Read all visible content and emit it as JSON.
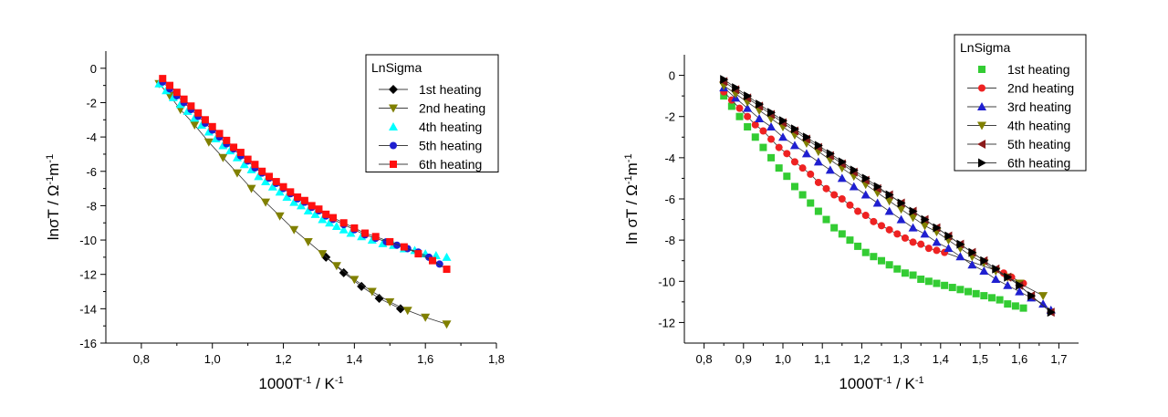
{
  "chart_data": [
    {
      "type": "line",
      "xlabel": "1000T⁻¹ / K⁻¹",
      "ylabel": "lnσT / Ω⁻¹m⁻¹",
      "xlim": [
        0.7,
        1.8
      ],
      "ylim": [
        -16,
        1
      ],
      "xticks": [
        "0,8",
        "1,0",
        "1,2",
        "1,4",
        "1,6",
        "1,8"
      ],
      "xtick_values": [
        0.8,
        1.0,
        1.2,
        1.4,
        1.6,
        1.8
      ],
      "yticks": [
        "0",
        "-2",
        "-4",
        "-6",
        "-8",
        "-10",
        "-12",
        "-14",
        "-16"
      ],
      "ytick_values": [
        0,
        -2,
        -4,
        -6,
        -8,
        -10,
        -12,
        -14,
        -16
      ],
      "legend_title": "LnSigma",
      "legend_position": "top-right",
      "series": [
        {
          "name": "1st heating",
          "marker": "diamond",
          "color": "#000000",
          "line": true,
          "x": [
            1.32,
            1.37,
            1.42,
            1.47,
            1.53
          ],
          "y": [
            -11.0,
            -11.9,
            -12.7,
            -13.4,
            -14.0
          ]
        },
        {
          "name": "2nd heating",
          "marker": "triangle-down",
          "color": "#808000",
          "line": true,
          "x": [
            0.85,
            0.88,
            0.91,
            0.95,
            0.99,
            1.03,
            1.07,
            1.11,
            1.15,
            1.19,
            1.23,
            1.27,
            1.31,
            1.35,
            1.4,
            1.45,
            1.5,
            1.55,
            1.6,
            1.66
          ],
          "y": [
            -0.9,
            -1.6,
            -2.4,
            -3.3,
            -4.3,
            -5.2,
            -6.1,
            -7.0,
            -7.8,
            -8.6,
            -9.4,
            -10.1,
            -10.8,
            -11.5,
            -12.3,
            -13.0,
            -13.6,
            -14.1,
            -14.5,
            -14.9
          ]
        },
        {
          "name": "4th heating",
          "marker": "triangle-up",
          "color": "#00ffff",
          "line": false,
          "x": [
            0.85,
            0.87,
            0.89,
            0.91,
            0.93,
            0.95,
            0.97,
            0.99,
            1.01,
            1.03,
            1.05,
            1.07,
            1.09,
            1.11,
            1.13,
            1.15,
            1.17,
            1.19,
            1.21,
            1.23,
            1.25,
            1.27,
            1.29,
            1.31,
            1.33,
            1.35,
            1.37,
            1.39,
            1.42,
            1.45,
            1.48,
            1.51,
            1.54,
            1.57,
            1.6,
            1.63,
            1.66
          ],
          "y": [
            -0.9,
            -1.3,
            -1.7,
            -2.1,
            -2.5,
            -2.9,
            -3.3,
            -3.7,
            -4.1,
            -4.5,
            -4.8,
            -5.2,
            -5.6,
            -5.9,
            -6.3,
            -6.6,
            -6.9,
            -7.2,
            -7.5,
            -7.8,
            -8.0,
            -8.3,
            -8.5,
            -8.8,
            -9.0,
            -9.2,
            -9.4,
            -9.6,
            -9.8,
            -10.0,
            -10.2,
            -10.3,
            -10.5,
            -10.6,
            -10.8,
            -10.9,
            -11.0
          ]
        },
        {
          "name": "5th heating",
          "marker": "circle",
          "color": "#1f1fd0",
          "line": true,
          "x": [
            0.86,
            0.88,
            0.9,
            0.92,
            0.94,
            0.96,
            0.98,
            1.0,
            1.02,
            1.04,
            1.06,
            1.08,
            1.1,
            1.12,
            1.14,
            1.16,
            1.18,
            1.2,
            1.22,
            1.24,
            1.26,
            1.28,
            1.3,
            1.32,
            1.34,
            1.37,
            1.4,
            1.43,
            1.46,
            1.49,
            1.52,
            1.55,
            1.58,
            1.61,
            1.64
          ],
          "y": [
            -0.8,
            -1.2,
            -1.6,
            -2.0,
            -2.4,
            -2.8,
            -3.2,
            -3.6,
            -4.0,
            -4.4,
            -4.7,
            -5.1,
            -5.4,
            -5.8,
            -6.1,
            -6.4,
            -6.7,
            -7.0,
            -7.3,
            -7.6,
            -7.8,
            -8.1,
            -8.3,
            -8.6,
            -8.8,
            -9.1,
            -9.4,
            -9.7,
            -9.9,
            -10.1,
            -10.3,
            -10.5,
            -10.7,
            -11.0,
            -11.4
          ]
        },
        {
          "name": "6th heating",
          "marker": "square",
          "color": "#ff1010",
          "line": true,
          "x": [
            0.86,
            0.88,
            0.9,
            0.92,
            0.94,
            0.96,
            0.98,
            1.0,
            1.02,
            1.04,
            1.06,
            1.08,
            1.1,
            1.12,
            1.14,
            1.16,
            1.18,
            1.2,
            1.22,
            1.24,
            1.26,
            1.28,
            1.3,
            1.32,
            1.34,
            1.37,
            1.4,
            1.43,
            1.46,
            1.5,
            1.54,
            1.58,
            1.62,
            1.66
          ],
          "y": [
            -0.6,
            -1.0,
            -1.4,
            -1.8,
            -2.2,
            -2.6,
            -3.0,
            -3.4,
            -3.8,
            -4.2,
            -4.6,
            -4.9,
            -5.3,
            -5.6,
            -6.0,
            -6.3,
            -6.6,
            -6.9,
            -7.2,
            -7.5,
            -7.7,
            -8.0,
            -8.2,
            -8.5,
            -8.7,
            -9.0,
            -9.3,
            -9.6,
            -9.8,
            -10.1,
            -10.4,
            -10.8,
            -11.2,
            -11.7
          ]
        }
      ]
    },
    {
      "type": "line",
      "xlabel": "1000T⁻¹ / K⁻¹",
      "ylabel": "ln σT / Ω⁻¹m⁻¹",
      "xlim": [
        0.75,
        1.75
      ],
      "ylim": [
        -13,
        1
      ],
      "xticks": [
        "0,8",
        "0,9",
        "1,0",
        "1,1",
        "1,2",
        "1,3",
        "1,4",
        "1,5",
        "1,6",
        "1,7"
      ],
      "xtick_values": [
        0.8,
        0.9,
        1.0,
        1.1,
        1.2,
        1.3,
        1.4,
        1.5,
        1.6,
        1.7
      ],
      "yticks": [
        "0",
        "-2",
        "-4",
        "-6",
        "-8",
        "-10",
        "-12"
      ],
      "ytick_values": [
        0,
        -2,
        -4,
        -6,
        -8,
        -10,
        -12
      ],
      "legend_title": "LnSigma",
      "legend_position": "top-right",
      "series": [
        {
          "name": "1st heating",
          "marker": "square",
          "color": "#33cc33",
          "line": false,
          "x": [
            0.85,
            0.87,
            0.89,
            0.91,
            0.93,
            0.95,
            0.97,
            0.99,
            1.01,
            1.03,
            1.05,
            1.07,
            1.09,
            1.11,
            1.13,
            1.15,
            1.17,
            1.19,
            1.21,
            1.23,
            1.25,
            1.27,
            1.29,
            1.31,
            1.33,
            1.35,
            1.37,
            1.39,
            1.41,
            1.43,
            1.45,
            1.47,
            1.49,
            1.51,
            1.53,
            1.55,
            1.57,
            1.59,
            1.61
          ],
          "y": [
            -1.0,
            -1.5,
            -2.0,
            -2.5,
            -3.0,
            -3.5,
            -4.0,
            -4.5,
            -4.9,
            -5.4,
            -5.8,
            -6.2,
            -6.6,
            -7.0,
            -7.4,
            -7.7,
            -8.0,
            -8.3,
            -8.6,
            -8.8,
            -9.0,
            -9.2,
            -9.4,
            -9.6,
            -9.7,
            -9.9,
            -10.0,
            -10.1,
            -10.2,
            -10.3,
            -10.4,
            -10.5,
            -10.6,
            -10.7,
            -10.8,
            -10.9,
            -11.1,
            -11.2,
            -11.3
          ]
        },
        {
          "name": "2nd heating",
          "marker": "circle",
          "color": "#ee2222",
          "line": true,
          "x": [
            0.85,
            0.87,
            0.89,
            0.91,
            0.93,
            0.95,
            0.97,
            0.99,
            1.01,
            1.03,
            1.05,
            1.07,
            1.09,
            1.11,
            1.13,
            1.15,
            1.17,
            1.19,
            1.21,
            1.23,
            1.25,
            1.27,
            1.29,
            1.31,
            1.33,
            1.35,
            1.37,
            1.39,
            1.41,
            1.56,
            1.58,
            1.61
          ],
          "y": [
            -0.8,
            -1.2,
            -1.6,
            -2.0,
            -2.4,
            -2.7,
            -3.1,
            -3.5,
            -3.8,
            -4.2,
            -4.5,
            -4.8,
            -5.2,
            -5.5,
            -5.8,
            -6.0,
            -6.3,
            -6.6,
            -6.8,
            -7.1,
            -7.3,
            -7.5,
            -7.7,
            -7.9,
            -8.1,
            -8.2,
            -8.4,
            -8.5,
            -8.6,
            -9.6,
            -9.8,
            -10.1
          ]
        },
        {
          "name": "3rd heating",
          "marker": "triangle-up",
          "color": "#1f1fd0",
          "line": true,
          "x": [
            0.85,
            0.88,
            0.91,
            0.94,
            0.97,
            1.0,
            1.03,
            1.06,
            1.09,
            1.12,
            1.15,
            1.18,
            1.21,
            1.24,
            1.27,
            1.3,
            1.33,
            1.36,
            1.39,
            1.42,
            1.45,
            1.48,
            1.51,
            1.54,
            1.57,
            1.6,
            1.63,
            1.66,
            1.68
          ],
          "y": [
            -0.6,
            -1.1,
            -1.6,
            -2.1,
            -2.5,
            -3.0,
            -3.4,
            -3.8,
            -4.2,
            -4.6,
            -5.0,
            -5.4,
            -5.8,
            -6.2,
            -6.6,
            -7.0,
            -7.4,
            -7.7,
            -8.1,
            -8.4,
            -8.8,
            -9.2,
            -9.5,
            -9.9,
            -10.2,
            -10.5,
            -10.8,
            -11.1,
            -11.4
          ]
        },
        {
          "name": "4th heating",
          "marker": "triangle-down",
          "color": "#808000",
          "line": true,
          "x": [
            0.85,
            0.88,
            0.91,
            0.94,
            0.97,
            1.0,
            1.03,
            1.06,
            1.09,
            1.12,
            1.15,
            1.18,
            1.21,
            1.24,
            1.27,
            1.3,
            1.33,
            1.36,
            1.39,
            1.42,
            1.45,
            1.48,
            1.51,
            1.54,
            1.57,
            1.6,
            1.66
          ],
          "y": [
            -0.5,
            -0.9,
            -1.3,
            -1.7,
            -2.1,
            -2.5,
            -2.9,
            -3.3,
            -3.7,
            -4.1,
            -4.5,
            -4.9,
            -5.3,
            -5.7,
            -6.1,
            -6.5,
            -6.9,
            -7.3,
            -7.6,
            -8.0,
            -8.4,
            -8.8,
            -9.1,
            -9.5,
            -9.8,
            -10.1,
            -10.7
          ]
        },
        {
          "name": "5th heating",
          "marker": "triangle-left",
          "color": "#8b1a1a",
          "line": true,
          "x": [
            0.85,
            0.88,
            0.91,
            0.94,
            0.97,
            1.0,
            1.03,
            1.06,
            1.09,
            1.12,
            1.15,
            1.18,
            1.21,
            1.24,
            1.27,
            1.3,
            1.33,
            1.36,
            1.39,
            1.42,
            1.45,
            1.48,
            1.51,
            1.54,
            1.57,
            1.6,
            1.63,
            1.68
          ],
          "y": [
            -0.3,
            -0.7,
            -1.1,
            -1.5,
            -1.9,
            -2.3,
            -2.7,
            -3.1,
            -3.5,
            -3.9,
            -4.3,
            -4.7,
            -5.1,
            -5.5,
            -5.8,
            -6.2,
            -6.6,
            -7.0,
            -7.4,
            -7.8,
            -8.2,
            -8.6,
            -9.0,
            -9.4,
            -9.8,
            -10.2,
            -10.7,
            -11.5
          ]
        },
        {
          "name": "6th heating",
          "marker": "triangle-right",
          "color": "#000000",
          "line": true,
          "x": [
            0.85,
            0.88,
            0.91,
            0.94,
            0.97,
            1.0,
            1.03,
            1.06,
            1.09,
            1.12,
            1.15,
            1.18,
            1.21,
            1.24,
            1.27,
            1.3,
            1.33,
            1.36,
            1.39,
            1.42,
            1.45,
            1.48,
            1.51,
            1.54,
            1.57,
            1.6,
            1.63,
            1.68
          ],
          "y": [
            -0.2,
            -0.6,
            -1.0,
            -1.4,
            -1.8,
            -2.2,
            -2.6,
            -3.0,
            -3.4,
            -3.8,
            -4.2,
            -4.6,
            -5.0,
            -5.4,
            -5.8,
            -6.2,
            -6.6,
            -7.0,
            -7.4,
            -7.8,
            -8.2,
            -8.6,
            -9.0,
            -9.4,
            -9.8,
            -10.2,
            -10.7,
            -11.5
          ]
        }
      ]
    }
  ]
}
